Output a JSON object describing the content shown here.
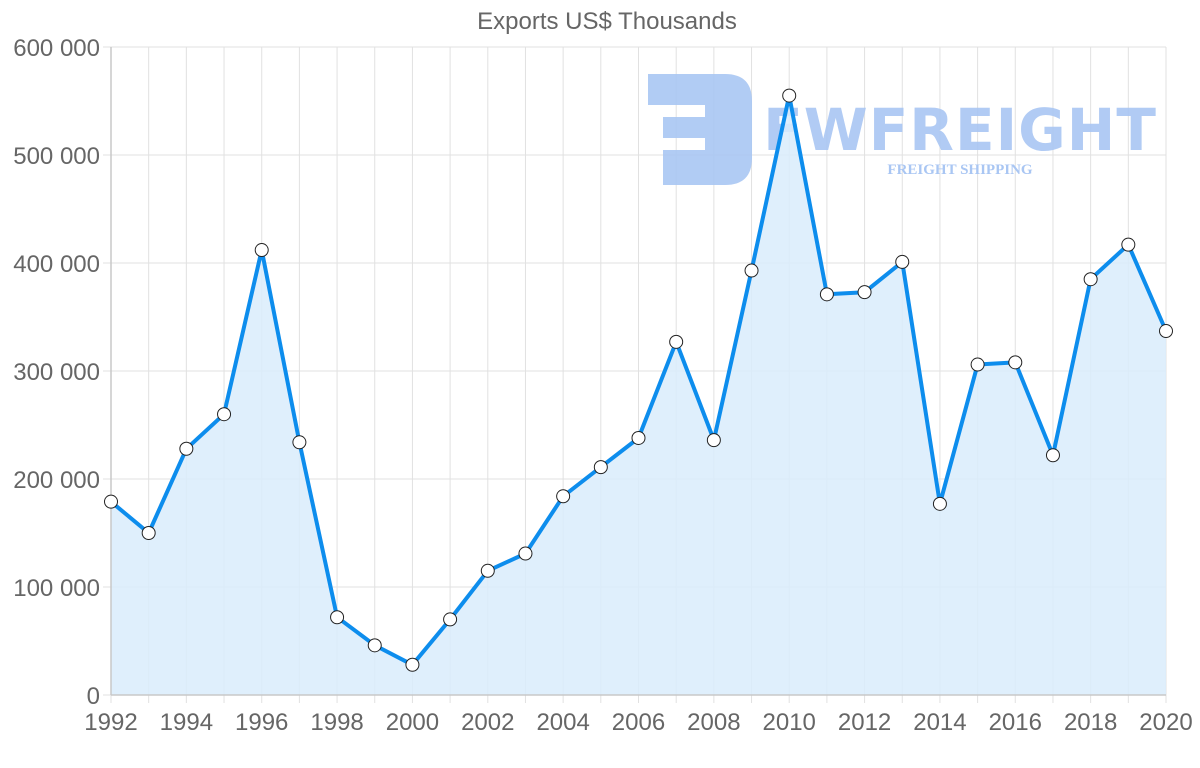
{
  "chart_data": {
    "type": "line",
    "title": "Exports US$ Thousands",
    "xlabel": "",
    "ylabel": "",
    "x": [
      1992,
      1993,
      1994,
      1995,
      1996,
      1997,
      1998,
      1999,
      2000,
      2001,
      2002,
      2003,
      2004,
      2005,
      2006,
      2007,
      2008,
      2009,
      2010,
      2011,
      2012,
      2013,
      2014,
      2015,
      2016,
      2017,
      2018,
      2019,
      2020
    ],
    "series": [
      {
        "name": "Exports US$ Thousands",
        "values": [
          179000,
          150000,
          228000,
          260000,
          412000,
          234000,
          72000,
          46000,
          28000,
          70000,
          115000,
          131000,
          184000,
          211000,
          238000,
          327000,
          236000,
          393000,
          555000,
          371000,
          373000,
          401000,
          177000,
          306000,
          308000,
          222000,
          385000,
          417000,
          337000
        ],
        "line_color": "#0d8ded",
        "fill_color": "#d9ecfc",
        "marker": "circle-white"
      }
    ],
    "ylim": [
      0,
      600000
    ],
    "y_ticks": [
      "0",
      "100 000",
      "200 000",
      "300 000",
      "400 000",
      "500 000",
      "600 000"
    ],
    "x_ticks": [
      "1992",
      "1994",
      "1996",
      "1998",
      "2000",
      "2002",
      "2004",
      "2006",
      "2008",
      "2010",
      "2012",
      "2014",
      "2016",
      "2018",
      "2020"
    ],
    "grid": true,
    "legend": null
  },
  "watermark": {
    "brand": "FWFREIGHT",
    "tagline": "FREIGHT SHIPPING",
    "color": "#a9c6f3"
  }
}
